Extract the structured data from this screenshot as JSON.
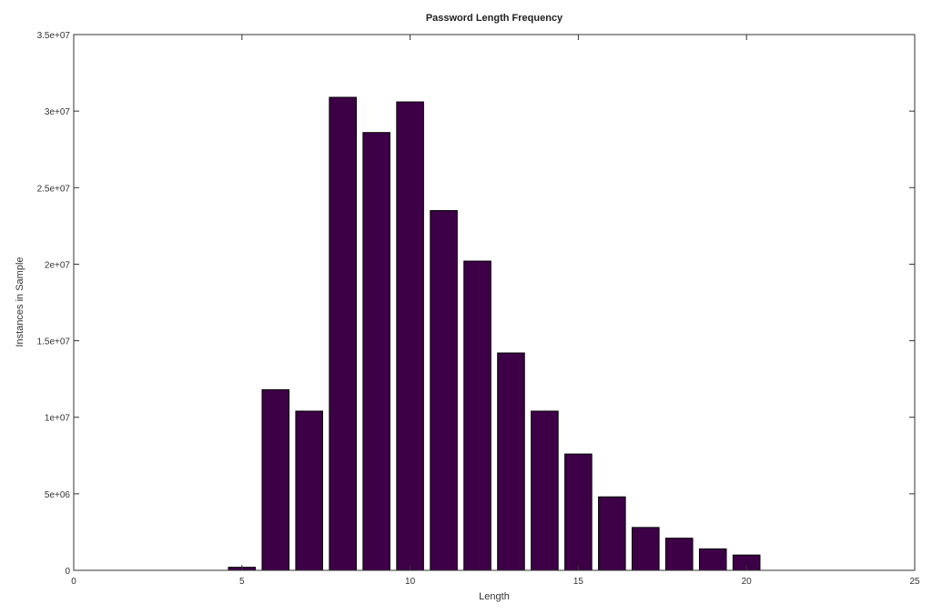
{
  "chart_data": {
    "type": "bar",
    "title": "Password Length Frequency",
    "xlabel": "Length",
    "ylabel": "Instances in Sample",
    "xlim": [
      0,
      25
    ],
    "ylim": [
      0,
      35000000
    ],
    "x_ticks": [
      0,
      5,
      10,
      15,
      20,
      25
    ],
    "x_tick_labels": [
      "0",
      "5",
      "10",
      "15",
      "20",
      "25"
    ],
    "y_ticks": [
      0,
      5000000,
      10000000,
      15000000,
      20000000,
      25000000,
      30000000,
      35000000
    ],
    "y_tick_labels": [
      "0",
      "5e+06",
      "1e+07",
      "1.5e+07",
      "2e+07",
      "2.5e+07",
      "3e+07",
      "3.5e+07"
    ],
    "grid": false,
    "bar_color": "#3d0047",
    "x": [
      5,
      6,
      7,
      8,
      9,
      10,
      11,
      12,
      13,
      14,
      15,
      16,
      17,
      18,
      19,
      20
    ],
    "values": [
      200000,
      11800000,
      10400000,
      30900000,
      28600000,
      30600000,
      23500000,
      20200000,
      14200000,
      10400000,
      7600000,
      4800000,
      2800000,
      2100000,
      1400000,
      1000000
    ]
  }
}
